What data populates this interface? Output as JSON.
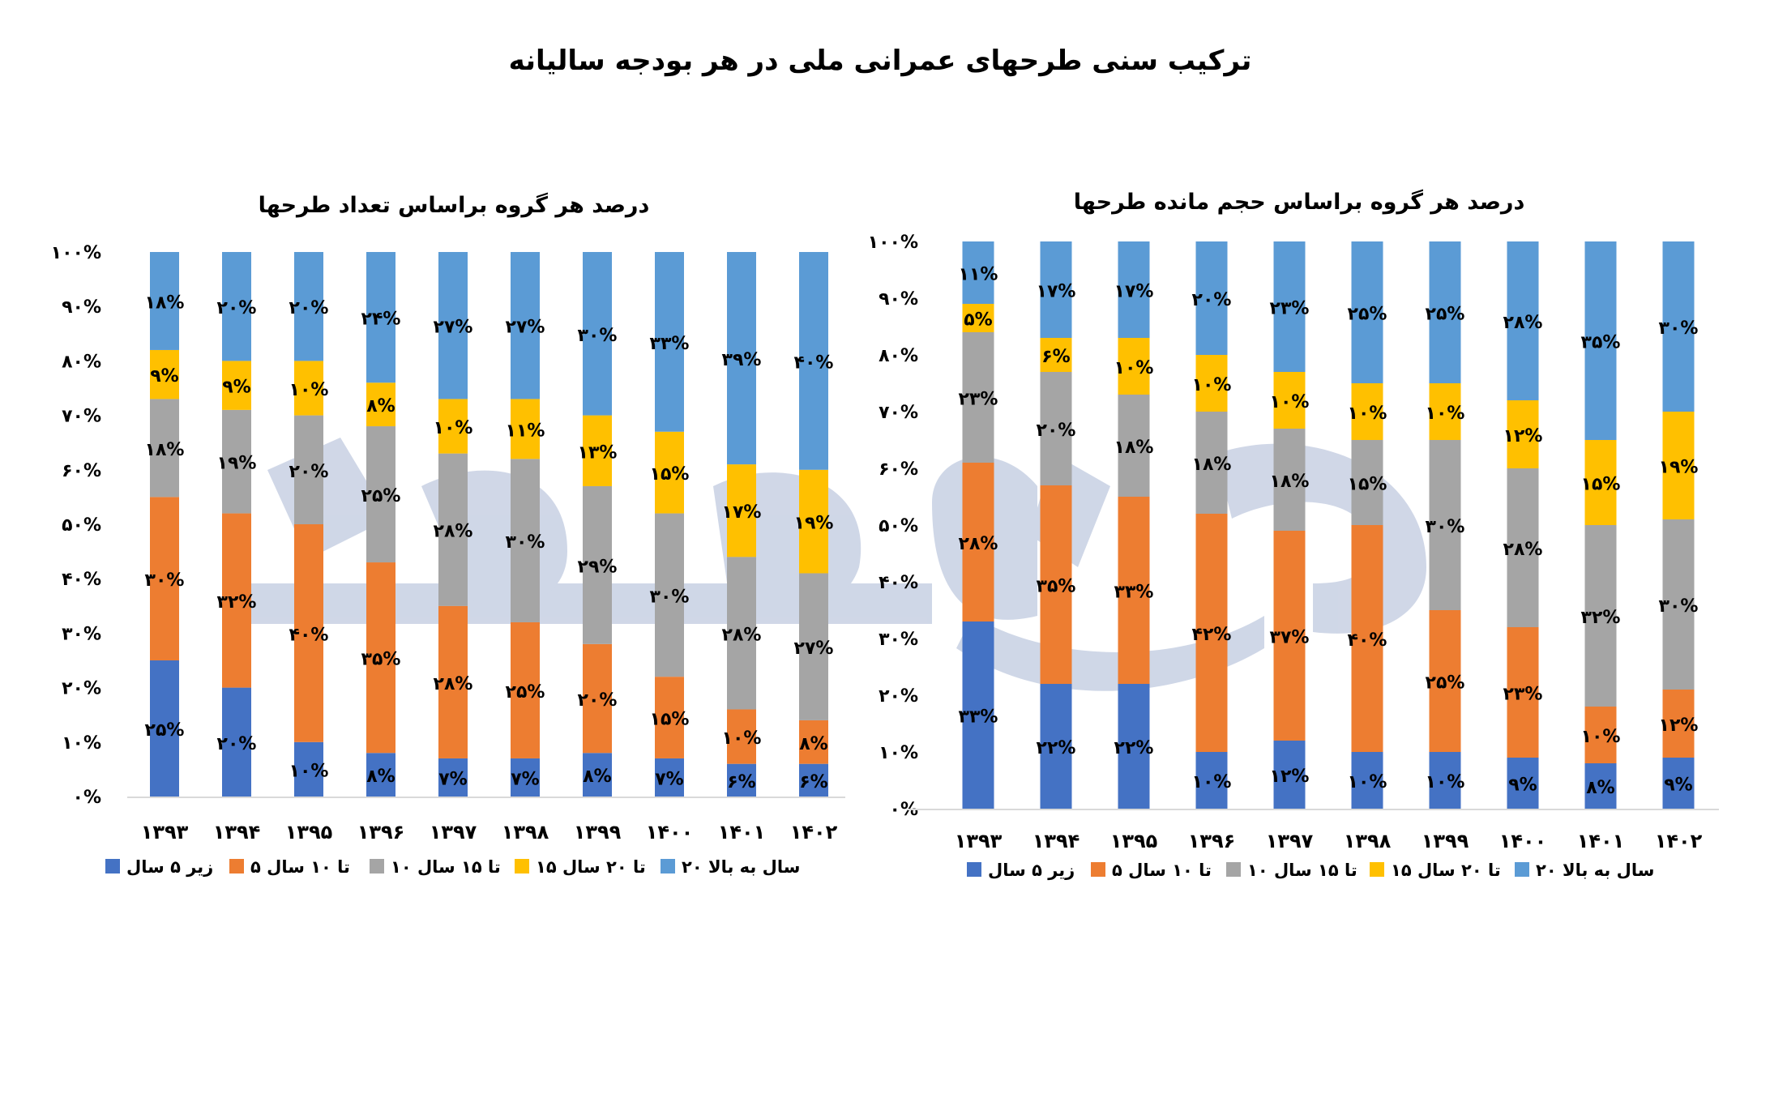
{
  "title": "ترکیب سنی طرحهای عمرانی ملی در هر بودجه سالیانه",
  "colors": {
    "under5": "#4472C4",
    "5to10": "#ED7D31",
    "10to15": "#A5A5A5",
    "15to20": "#FFC000",
    "over20": "#5B9BD5",
    "watermark": "#CDD5E6"
  },
  "chart_data": [
    {
      "type": "bar",
      "stacked": true,
      "percent": true,
      "title": "درصد هر گروه براساس تعداد طرحها",
      "categories": [
        "۱۳۹۳",
        "۱۳۹۴",
        "۱۳۹۵",
        "۱۳۹۶",
        "۱۳۹۷",
        "۱۳۹۸",
        "۱۳۹۹",
        "۱۴۰۰",
        "۱۴۰۱",
        "۱۴۰۲"
      ],
      "yticks": [
        "۰%",
        "۱۰%",
        "۲۰%",
        "۳۰%",
        "۴۰%",
        "۵۰%",
        "۶۰%",
        "۷۰%",
        "۸۰%",
        "۹۰%",
        "۱۰۰%"
      ],
      "ylim": [
        0,
        100
      ],
      "grid": false,
      "legend_position": "bottom",
      "series": [
        {
          "name": "زیر ۵ سال",
          "color": "#4472C4",
          "values": [
            25,
            20,
            10,
            8,
            7,
            7,
            8,
            7,
            6,
            6
          ]
        },
        {
          "name": "۵ تا ۱۰ سال",
          "color": "#ED7D31",
          "values": [
            30,
            32,
            40,
            35,
            28,
            25,
            20,
            15,
            10,
            8
          ]
        },
        {
          "name": "۱۰ تا ۱۵ سال",
          "color": "#A5A5A5",
          "values": [
            18,
            19,
            20,
            25,
            28,
            30,
            29,
            30,
            28,
            27
          ]
        },
        {
          "name": "۱۵ تا ۲۰ سال",
          "color": "#FFC000",
          "values": [
            9,
            9,
            10,
            8,
            10,
            11,
            13,
            15,
            17,
            19
          ]
        },
        {
          "name": "۲۰ سال به بالا",
          "color": "#5B9BD5",
          "values": [
            18,
            20,
            20,
            24,
            27,
            27,
            30,
            33,
            39,
            40
          ]
        }
      ]
    },
    {
      "type": "bar",
      "stacked": true,
      "percent": true,
      "title": "درصد هر گروه براساس حجم مانده طرحها",
      "categories": [
        "۱۳۹۳",
        "۱۳۹۴",
        "۱۳۹۵",
        "۱۳۹۶",
        "۱۳۹۷",
        "۱۳۹۸",
        "۱۳۹۹",
        "۱۴۰۰",
        "۱۴۰۱",
        "۱۴۰۲"
      ],
      "yticks": [
        "۰%",
        "۱۰%",
        "۲۰%",
        "۳۰%",
        "۴۰%",
        "۵۰%",
        "۶۰%",
        "۷۰%",
        "۸۰%",
        "۹۰%",
        "۱۰۰%"
      ],
      "ylim": [
        0,
        100
      ],
      "grid": false,
      "legend_position": "bottom",
      "series": [
        {
          "name": "زیر ۵ سال",
          "color": "#4472C4",
          "values": [
            33,
            22,
            22,
            10,
            12,
            10,
            10,
            9,
            8,
            9
          ]
        },
        {
          "name": "۵ تا ۱۰ سال",
          "color": "#ED7D31",
          "values": [
            28,
            35,
            33,
            42,
            37,
            40,
            25,
            23,
            10,
            12
          ]
        },
        {
          "name": "۱۰ تا ۱۵ سال",
          "color": "#A5A5A5",
          "values": [
            23,
            20,
            18,
            18,
            18,
            15,
            30,
            28,
            32,
            30
          ]
        },
        {
          "name": "۱۵ تا ۲۰ سال",
          "color": "#FFC000",
          "values": [
            5,
            6,
            10,
            10,
            10,
            10,
            10,
            12,
            15,
            19
          ]
        },
        {
          "name": "۲۰ سال به بالا",
          "color": "#5B9BD5",
          "values": [
            11,
            17,
            17,
            20,
            23,
            25,
            25,
            28,
            35,
            30
          ]
        }
      ]
    }
  ]
}
